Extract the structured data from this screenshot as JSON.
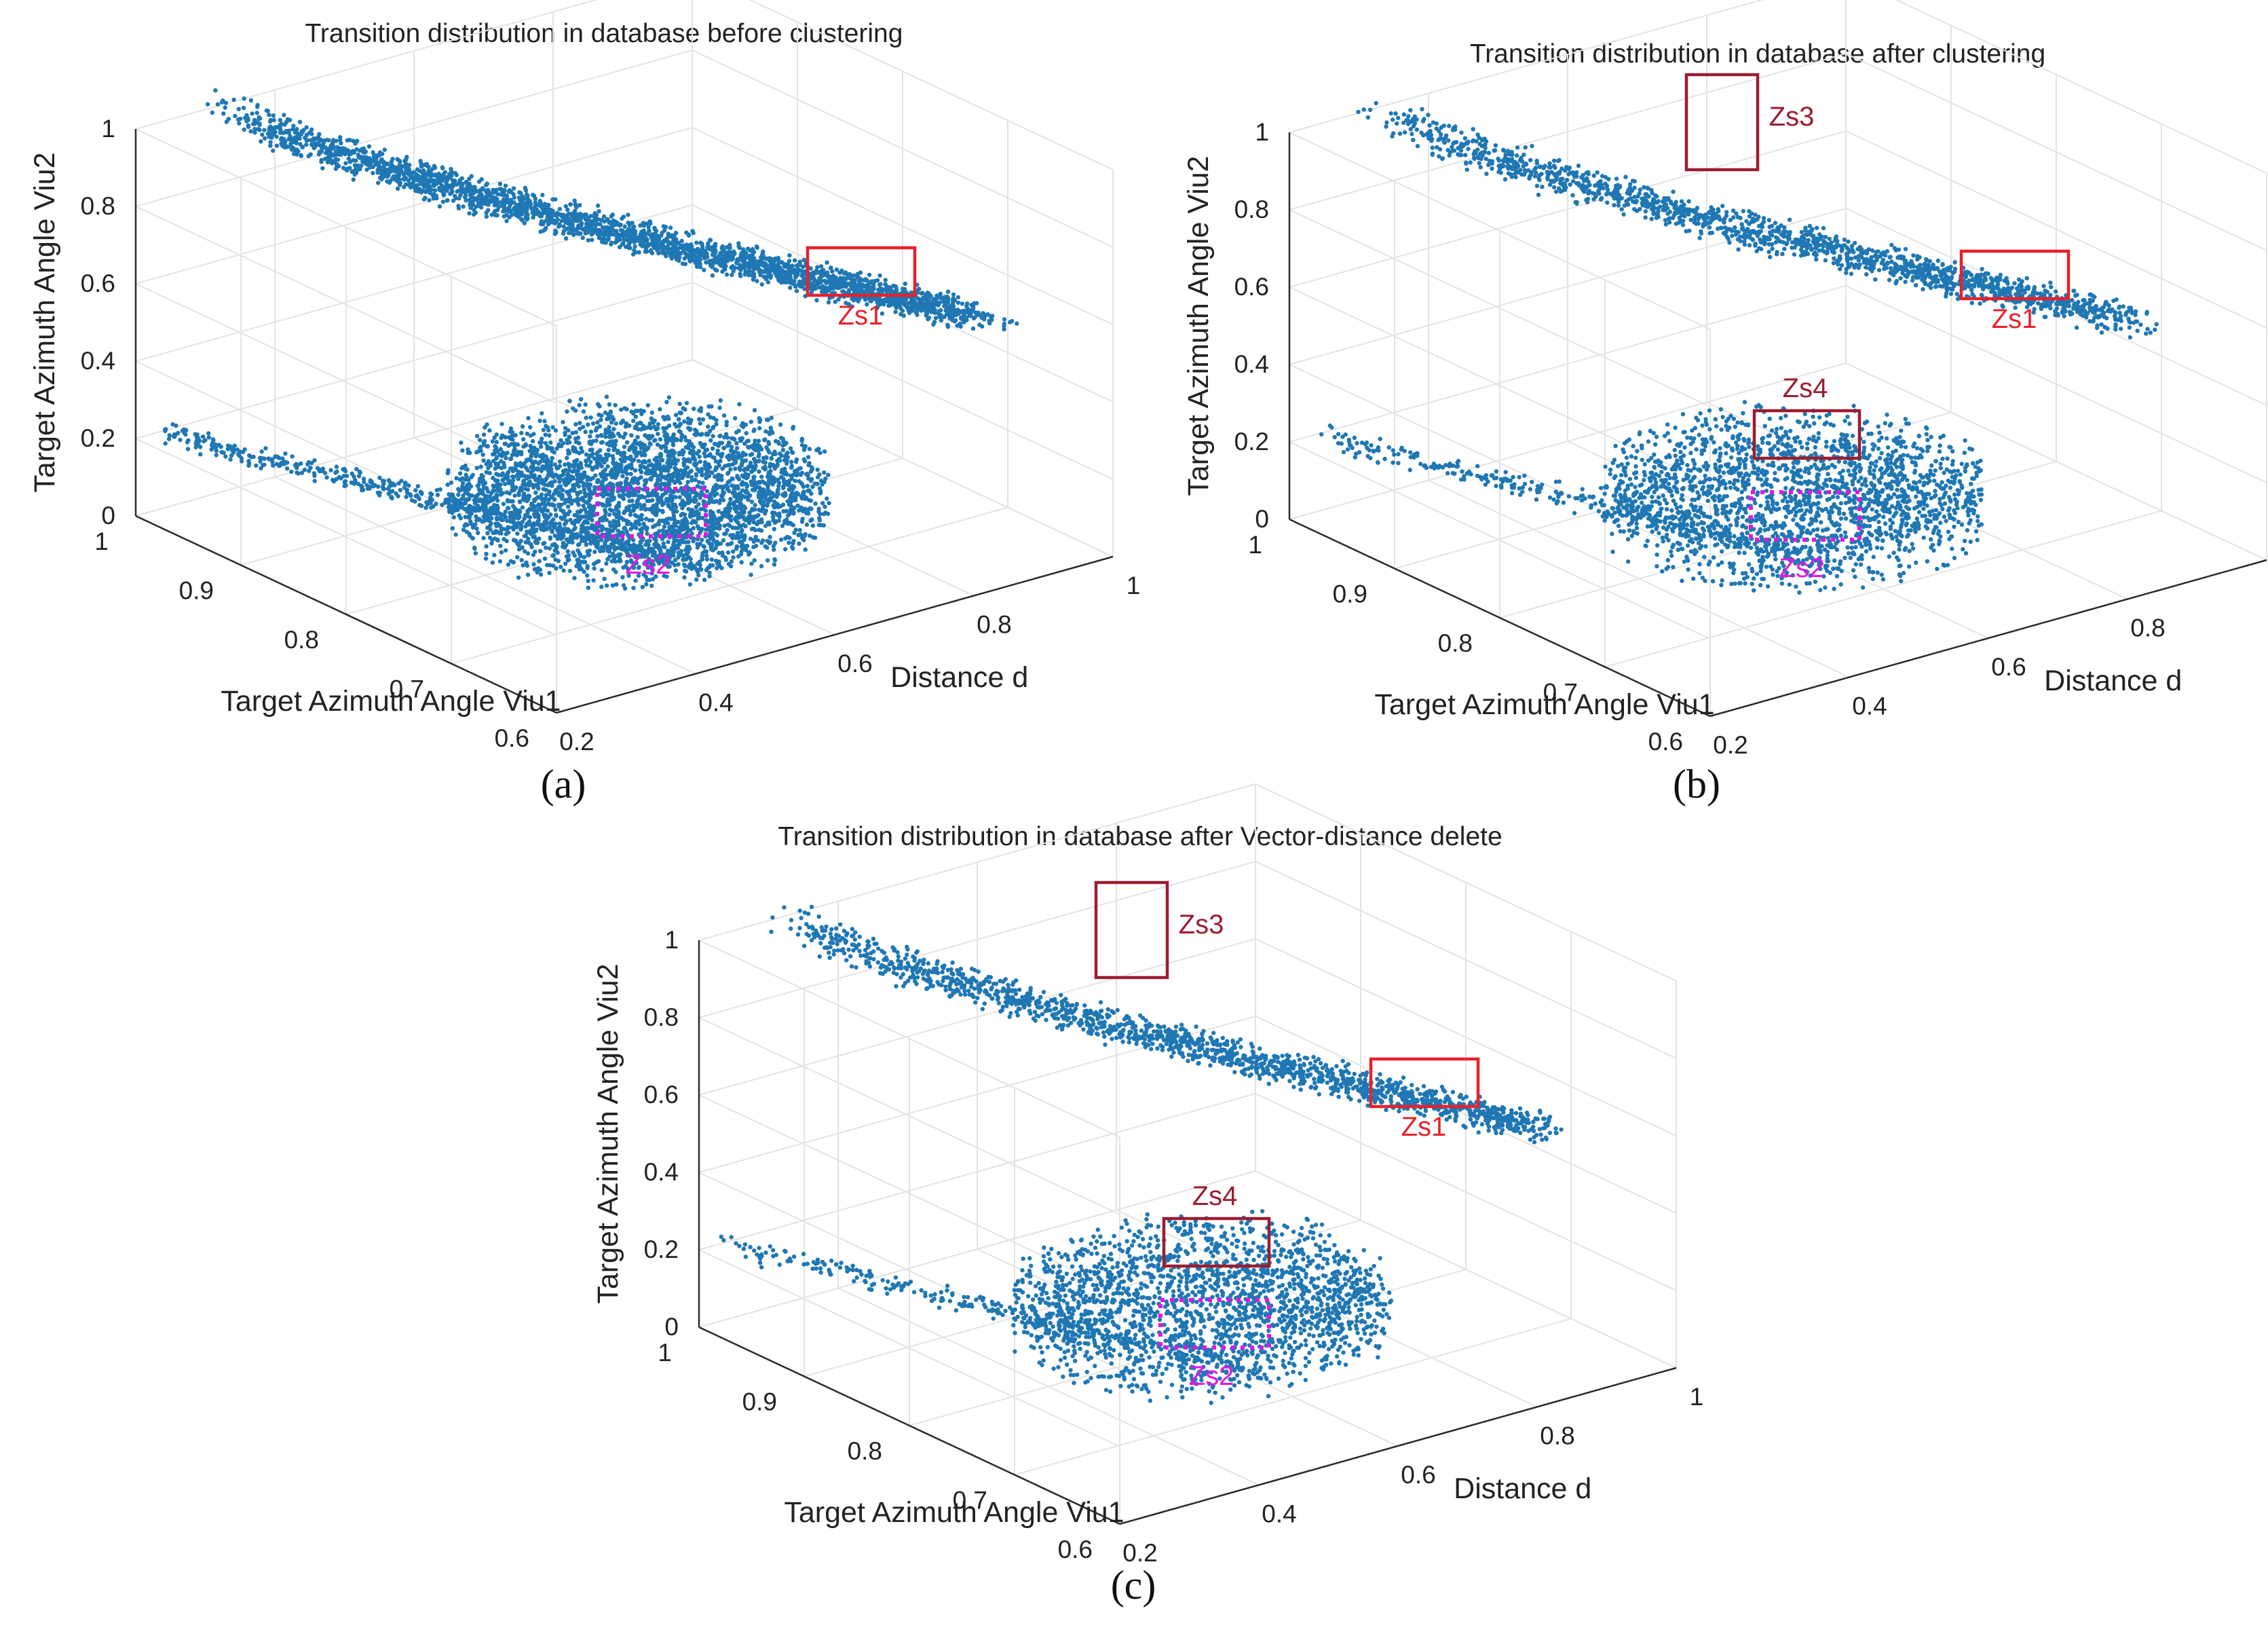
{
  "chart_data": [
    {
      "type": "scatter",
      "panel_label": "(a)",
      "title": "Transition distribution in database before clustering",
      "xlabel": "Distance d",
      "ylabel": "Target Azimuth Angle Viu1",
      "zlabel": "Target Azimuth Angle Viu2",
      "xlim": [
        0.2,
        1.0
      ],
      "ylim": [
        0.6,
        1.0
      ],
      "zlim": [
        0,
        1.0
      ],
      "x_ticks": [
        "0.2",
        "0.4",
        "0.6",
        "0.8",
        "1"
      ],
      "y_ticks": [
        "0.6",
        "0.7",
        "0.8",
        "0.9",
        "1"
      ],
      "z_ticks": [
        "0",
        "0.2",
        "0.4",
        "0.6",
        "0.8",
        "1"
      ],
      "point_color": "#1f77b4",
      "clusters": [
        {
          "name": "upper band",
          "z_range": [
            0.6,
            1.0
          ],
          "density": "high"
        },
        {
          "name": "lower band",
          "z_range": [
            0.0,
            0.2
          ],
          "density": "high"
        }
      ],
      "annotations": [
        {
          "label": "Zs1",
          "color": "#e8202a",
          "style": "solid",
          "region": "upper band right end"
        },
        {
          "label": "Zs2",
          "color": "#e316e3",
          "style": "dotted",
          "region": "lower band center"
        }
      ]
    },
    {
      "type": "scatter",
      "panel_label": "(b)",
      "title": "Transition distribution in database after clustering",
      "xlabel": "Distance d",
      "ylabel": "Target Azimuth Angle Viu1",
      "zlabel": "Target Azimuth Angle Viu2",
      "xlim": [
        0.2,
        1.0
      ],
      "ylim": [
        0.6,
        1.0
      ],
      "zlim": [
        0,
        1.0
      ],
      "x_ticks": [
        "0.2",
        "0.4",
        "0.6",
        "0.8",
        "1"
      ],
      "y_ticks": [
        "0.6",
        "0.7",
        "0.8",
        "0.9",
        "1"
      ],
      "z_ticks": [
        "0",
        "0.2",
        "0.4",
        "0.6",
        "0.8",
        "1"
      ],
      "point_color": "#1f77b4",
      "clusters": [
        {
          "name": "upper band",
          "z_range": [
            0.6,
            1.0
          ],
          "density": "medium"
        },
        {
          "name": "lower band",
          "z_range": [
            0.0,
            0.2
          ],
          "density": "medium"
        }
      ],
      "annotations": [
        {
          "label": "Zs1",
          "color": "#e8202a",
          "style": "solid",
          "region": "upper band right end"
        },
        {
          "label": "Zs2",
          "color": "#e316e3",
          "style": "dotted",
          "region": "lower band center"
        },
        {
          "label": "Zs3",
          "color": "#9b1c31",
          "style": "solid",
          "region": "upper band left end"
        },
        {
          "label": "Zs4",
          "color": "#9b1c31",
          "style": "solid",
          "region": "lower band top"
        }
      ]
    },
    {
      "type": "scatter",
      "panel_label": "(c)",
      "title": "Transition distribution in database after Vector-distance delete",
      "xlabel": "Distance d",
      "ylabel": "Target Azimuth Angle Viu1",
      "zlabel": "Target Azimuth Angle Viu2",
      "xlim": [
        0.2,
        1.0
      ],
      "ylim": [
        0.6,
        1.0
      ],
      "zlim": [
        0,
        1.0
      ],
      "x_ticks": [
        "0.2",
        "0.4",
        "0.6",
        "0.8",
        "1"
      ],
      "y_ticks": [
        "0.6",
        "0.7",
        "0.8",
        "0.9",
        "1"
      ],
      "z_ticks": [
        "0",
        "0.2",
        "0.4",
        "0.6",
        "0.8",
        "1"
      ],
      "point_color": "#1f77b4",
      "clusters": [
        {
          "name": "upper band",
          "z_range": [
            0.6,
            1.0
          ],
          "density": "medium"
        },
        {
          "name": "lower band",
          "z_range": [
            0.0,
            0.2
          ],
          "density": "medium"
        }
      ],
      "annotations": [
        {
          "label": "Zs1",
          "color": "#e8202a",
          "style": "solid",
          "region": "upper band right end"
        },
        {
          "label": "Zs2",
          "color": "#e316e3",
          "style": "dotted",
          "region": "lower band center"
        },
        {
          "label": "Zs3",
          "color": "#9b1c31",
          "style": "solid",
          "region": "upper band left end"
        },
        {
          "label": "Zs4",
          "color": "#9b1c31",
          "style": "solid",
          "region": "lower band top"
        }
      ]
    }
  ]
}
